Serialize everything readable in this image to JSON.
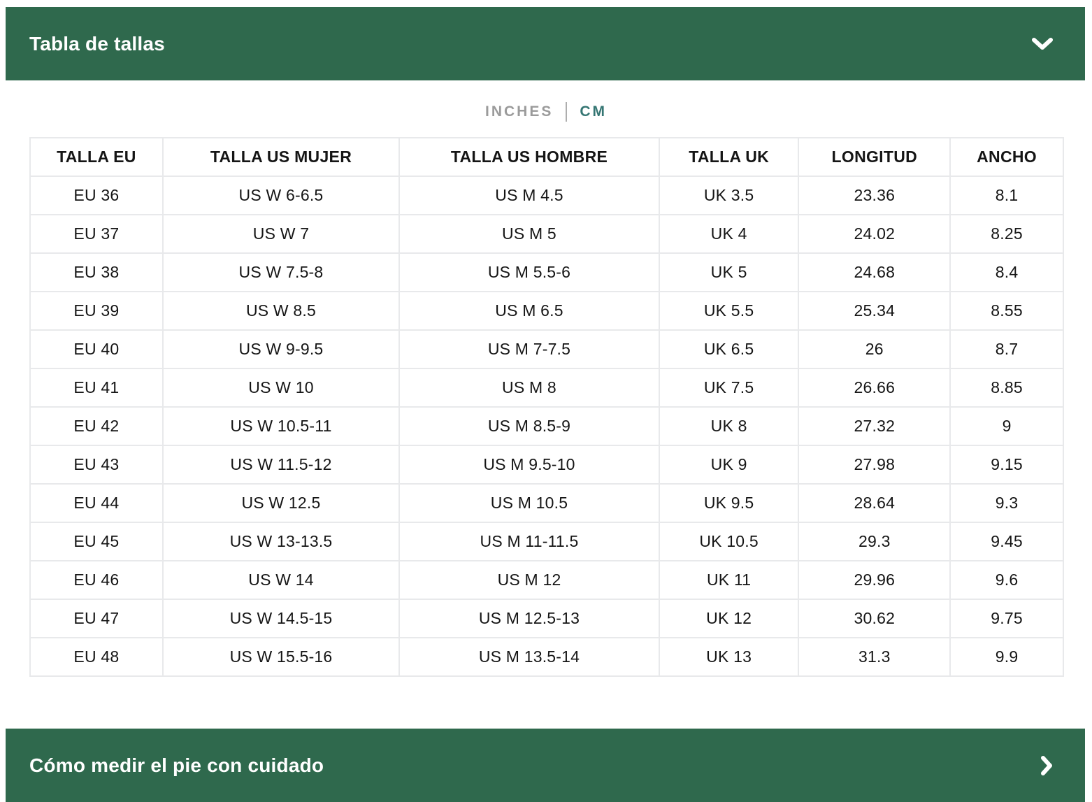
{
  "accordion": {
    "size_chart_title": "Tabla de tallas",
    "measure_guide_title": "Cómo medir el pie con cuidado"
  },
  "unit_toggle": {
    "inches_label": "INCHES",
    "cm_label": "CM",
    "selected": "CM"
  },
  "table": {
    "columns": [
      "TALLA EU",
      "TALLA US MUJER",
      "TALLA US HOMBRE",
      "TALLA UK",
      "LONGITUD",
      "ANCHO"
    ],
    "rows": [
      [
        "EU 36",
        "US W 6-6.5",
        "US M 4.5",
        "UK 3.5",
        "23.36",
        "8.1"
      ],
      [
        "EU 37",
        "US W 7",
        "US M 5",
        "UK 4",
        "24.02",
        "8.25"
      ],
      [
        "EU 38",
        "US W 7.5-8",
        "US M 5.5-6",
        "UK 5",
        "24.68",
        "8.4"
      ],
      [
        "EU 39",
        "US W 8.5",
        "US M 6.5",
        "UK 5.5",
        "25.34",
        "8.55"
      ],
      [
        "EU 40",
        "US W 9-9.5",
        "US M 7-7.5",
        "UK 6.5",
        "26",
        "8.7"
      ],
      [
        "EU 41",
        "US W 10",
        "US M 8",
        "UK 7.5",
        "26.66",
        "8.85"
      ],
      [
        "EU 42",
        "US W 10.5-11",
        "US M 8.5-9",
        "UK 8",
        "27.32",
        "9"
      ],
      [
        "EU 43",
        "US W 11.5-12",
        "US M 9.5-10",
        "UK 9",
        "27.98",
        "9.15"
      ],
      [
        "EU 44",
        "US W 12.5",
        "US M 10.5",
        "UK 9.5",
        "28.64",
        "9.3"
      ],
      [
        "EU 45",
        "US W 13-13.5",
        "US M 11-11.5",
        "UK 10.5",
        "29.3",
        "9.45"
      ],
      [
        "EU 46",
        "US W 14",
        "US M 12",
        "UK 11",
        "29.96",
        "9.6"
      ],
      [
        "EU 47",
        "US W 14.5-15",
        "US M 12.5-13",
        "UK 12",
        "30.62",
        "9.75"
      ],
      [
        "EU 48",
        "US W 15.5-16",
        "US M 13.5-14",
        "UK 13",
        "31.3",
        "9.9"
      ]
    ]
  },
  "colors": {
    "accent_green": "#2f694d",
    "active_teal": "#357673",
    "inactive_gray": "#9b9b9b",
    "divider_gray": "#aeaeae",
    "table_border": "#e8e9eb",
    "text_ink": "#151515"
  }
}
